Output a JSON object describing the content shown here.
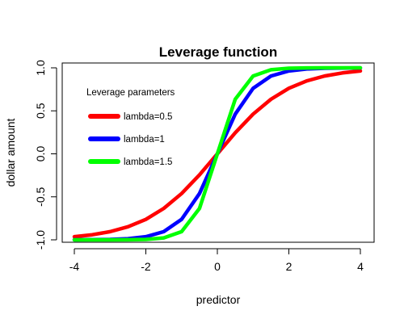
{
  "chart_data": {
    "type": "line",
    "title": "Leverage function",
    "xlabel": "predictor",
    "ylabel": "dollar amount",
    "xlim": [
      -4,
      4
    ],
    "ylim": [
      -1.0,
      1.0
    ],
    "xticks": [
      "-4",
      "-2",
      "0",
      "2",
      "4"
    ],
    "yticks": [
      "-1.0",
      "-0.5",
      "0.0",
      "0.5",
      "1.0"
    ],
    "grid": false,
    "legend": {
      "title": "Leverage parameters",
      "placement": "top-left"
    },
    "x": [
      -4,
      -3.5,
      -3,
      -2.5,
      -2,
      -1.5,
      -1,
      -0.5,
      0,
      0.5,
      1,
      1.5,
      2,
      2.5,
      3,
      3.5,
      4
    ],
    "series": [
      {
        "name": "lambda=0.5",
        "color": "#ff0000",
        "values": [
          -0.964,
          -0.941,
          -0.905,
          -0.848,
          -0.762,
          -0.635,
          -0.462,
          -0.245,
          0.0,
          0.245,
          0.462,
          0.635,
          0.762,
          0.848,
          0.905,
          0.941,
          0.964
        ]
      },
      {
        "name": "lambda=1",
        "color": "#0000ff",
        "values": [
          -0.999,
          -0.998,
          -0.995,
          -0.987,
          -0.964,
          -0.905,
          -0.762,
          -0.462,
          0.0,
          0.462,
          0.762,
          0.905,
          0.964,
          0.987,
          0.995,
          0.998,
          0.999
        ]
      },
      {
        "name": "lambda=1.5",
        "color": "#00ff00",
        "values": [
          -1.0,
          -1.0,
          -1.0,
          -0.999,
          -0.995,
          -0.978,
          -0.905,
          -0.635,
          0.0,
          0.635,
          0.905,
          0.978,
          0.995,
          0.999,
          1.0,
          1.0,
          1.0
        ]
      }
    ]
  }
}
